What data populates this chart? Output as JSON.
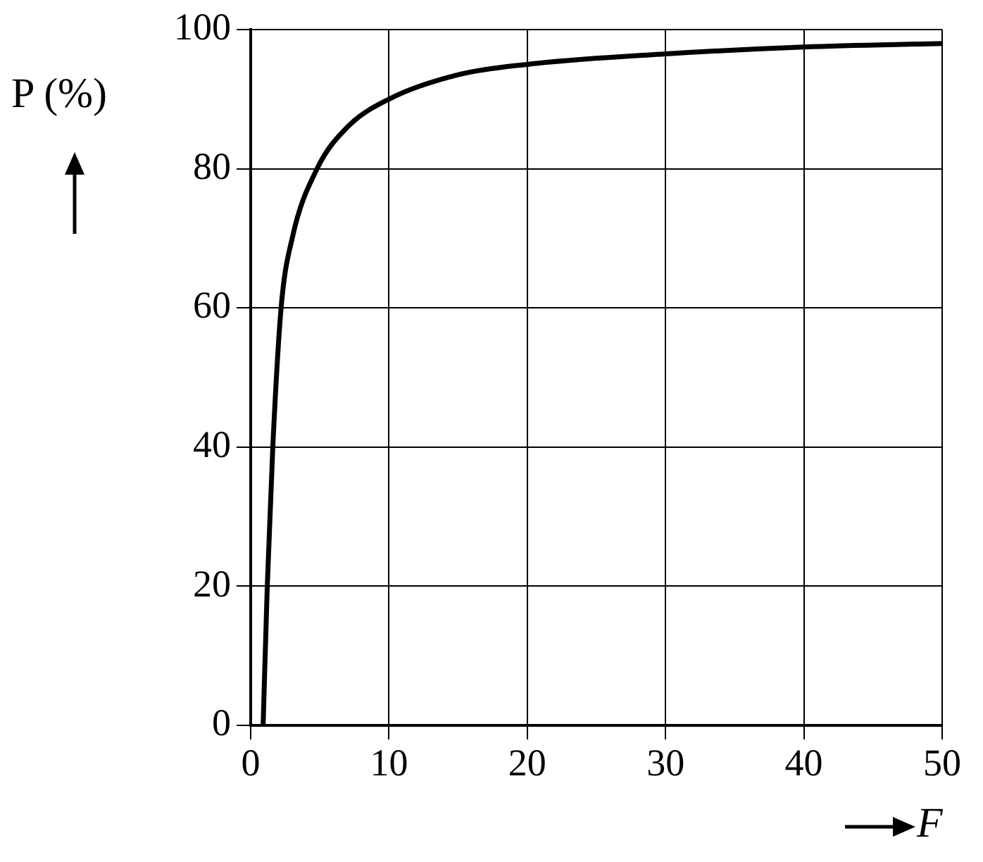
{
  "chart_data": {
    "type": "line",
    "xlabel": "F",
    "ylabel": "P (%)",
    "series": [
      {
        "color": "#000000",
        "x": [
          0.9,
          1.2,
          1.6,
          2.2,
          3,
          4.8,
          7,
          10,
          15,
          20,
          30,
          40,
          50
        ],
        "values": [
          0,
          20,
          40,
          60,
          70,
          80,
          86,
          90,
          93.5,
          95,
          96.5,
          97.5,
          98
        ]
      }
    ],
    "xlim": [
      0,
      50
    ],
    "xticks": [
      0,
      10,
      20,
      30,
      40,
      50
    ],
    "ylim": [
      0,
      100
    ],
    "yticks": [
      0,
      20,
      40,
      60,
      80,
      100
    ],
    "grid": true,
    "legend": false,
    "marker": "none",
    "line_style": "solid"
  }
}
